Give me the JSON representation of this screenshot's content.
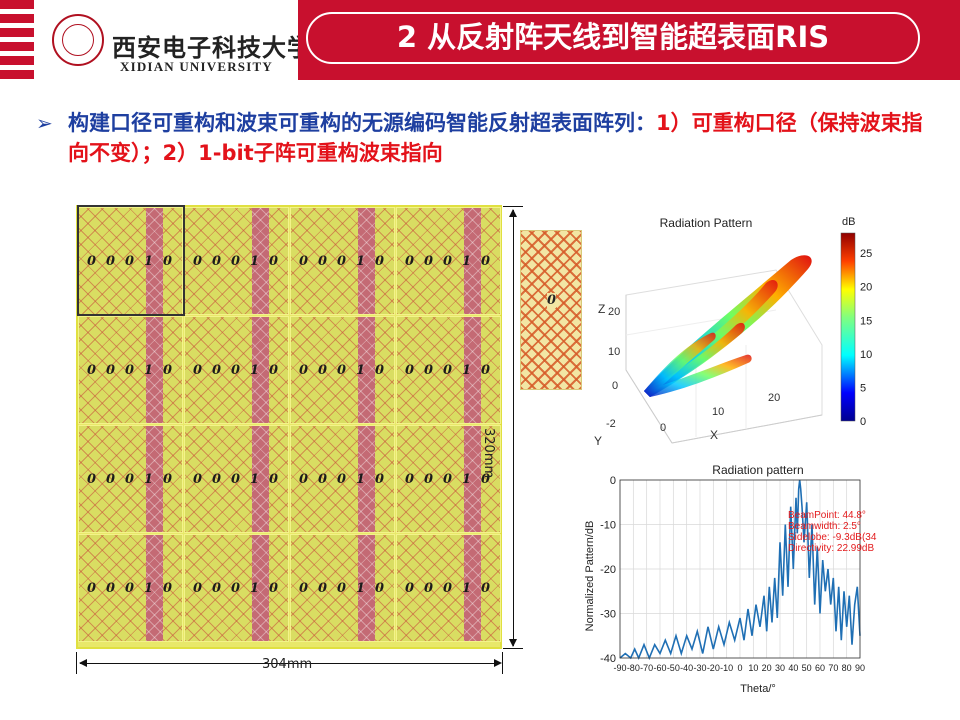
{
  "header": {
    "university_cn": "西安电子科技大学",
    "university_en": "XIDIAN UNIVERSITY",
    "title": "2 从反射阵天线到智能超表面RIS"
  },
  "bullet": {
    "symbol": "➢",
    "text_lead": "构建口径可重构和波束可重构的无源编码智能反射超表面阵列：",
    "text_rest": "1）可重构口径（保持波束指向不变）；2）1-bit子阵可重构波束指向"
  },
  "array": {
    "columns": 4,
    "rows": 4,
    "subarray_code": [
      "0",
      "0",
      "0",
      "1",
      "0"
    ],
    "unit_cell_code": "0",
    "width_label": "304mm",
    "height_label": "320mm"
  },
  "pattern3d": {
    "title": "Radiation Pattern",
    "colorbar_label": "dB",
    "colorbar_ticks": [
      "25",
      "20",
      "15",
      "10",
      "5",
      "0"
    ],
    "colorbar_range": [
      0,
      28
    ],
    "z_label": "Z",
    "z_ticks": [
      "20",
      "10",
      "0"
    ],
    "x_label": "X",
    "x_ticks": [
      "0",
      "10",
      "20"
    ],
    "y_label": "Y",
    "y_ticks": [
      "-2"
    ]
  },
  "chart_data": {
    "type": "line",
    "title": "Radiation pattern",
    "xlabel": "Theta/°",
    "ylabel": "Normalized Pattern/dB",
    "xlim": [
      -90,
      90
    ],
    "ylim": [
      -40,
      0
    ],
    "x_ticks": [
      "-90",
      "-80",
      "-70",
      "-60",
      "-50",
      "-40",
      "-30",
      "-20",
      "-10",
      "0",
      "10",
      "20",
      "30",
      "40",
      "50",
      "60",
      "70",
      "80",
      "90"
    ],
    "y_ticks": [
      "0",
      "-10",
      "-20",
      "-30",
      "-40"
    ],
    "grid": true,
    "series": [
      {
        "name": "pattern",
        "color": "#1f6fb4",
        "x": [
          -90,
          -86,
          -82,
          -79,
          -76,
          -72,
          -68,
          -64,
          -60,
          -56,
          -52,
          -48,
          -44,
          -40,
          -36,
          -32,
          -28,
          -24,
          -20,
          -16,
          -12,
          -8,
          -4,
          0,
          3,
          6,
          9,
          12,
          15,
          18,
          20,
          22,
          24,
          26,
          28,
          30,
          32,
          34,
          36,
          38,
          40,
          42,
          43,
          44,
          44.8,
          45.5,
          46.5,
          48,
          50,
          52,
          54,
          56,
          58,
          60,
          62,
          64,
          66,
          68,
          70,
          72,
          74,
          76,
          78,
          80,
          82,
          84,
          86,
          88,
          90
        ],
        "y": [
          -40,
          -39,
          -40,
          -38,
          -40,
          -37,
          -40,
          -37,
          -39,
          -36,
          -39,
          -35,
          -39,
          -35,
          -38,
          -34,
          -39,
          -33,
          -38,
          -33,
          -37,
          -32,
          -36,
          -31,
          -36,
          -29,
          -35,
          -28,
          -33,
          -26,
          -34,
          -24,
          -32,
          -22,
          -31,
          -14,
          -26,
          -10,
          -24,
          -6,
          -20,
          -4,
          -12,
          -2,
          0,
          -2,
          -6,
          -14,
          -5,
          -22,
          -10,
          -28,
          -15,
          -30,
          -18,
          -25,
          -20,
          -28,
          -22,
          -34,
          -24,
          -36,
          -25,
          -33,
          -26,
          -37,
          -28,
          -24,
          -35
        ]
      }
    ],
    "annotations": [
      "BeamPoint: 44.8°",
      "Beamwidth: 2.5°",
      "Sidelobe: -9.3dB(34",
      "Directivity: 22.99dB"
    ]
  }
}
